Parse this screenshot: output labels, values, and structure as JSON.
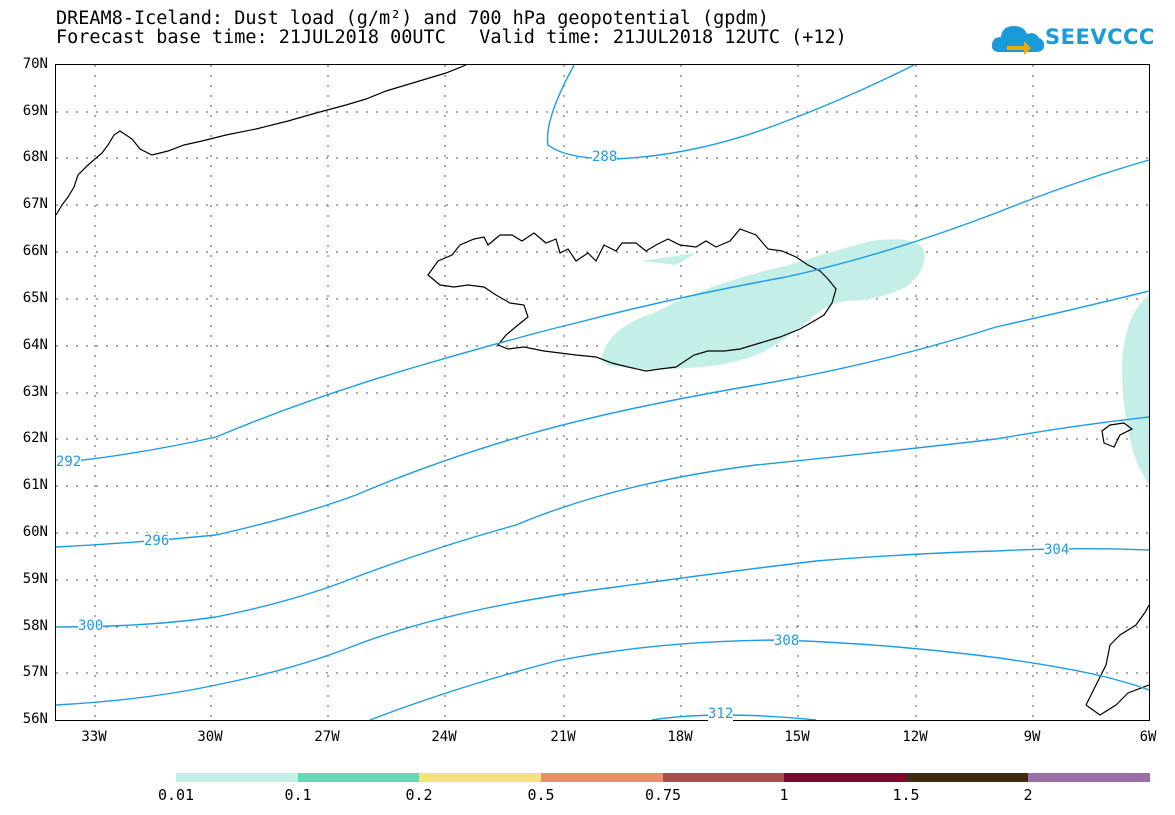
{
  "header": {
    "title_line1": "DREAM8-Iceland: Dust load (g/m²) and 700 hPa geopotential (gpdm)",
    "title_line2": "Forecast base time: 21JUL2018 00UTC   Valid time: 21JUL2018 12UTC (+12)",
    "logo_text": "SEEVCCC"
  },
  "axes": {
    "lat_labels": [
      "70N",
      "69N",
      "68N",
      "67N",
      "66N",
      "65N",
      "64N",
      "63N",
      "62N",
      "61N",
      "60N",
      "59N",
      "58N",
      "57N",
      "56N"
    ],
    "lon_labels": [
      "33W",
      "30W",
      "27W",
      "24W",
      "21W",
      "18W",
      "15W",
      "12W",
      "9W",
      "6W"
    ]
  },
  "contours": {
    "line_color": "#1c9ce6",
    "labels": [
      "288",
      "292",
      "296",
      "300",
      "304",
      "308",
      "312"
    ]
  },
  "colorbar": {
    "colors": [
      "#c4efe8",
      "#5fdcb5",
      "#f5e27a",
      "#e88f6e",
      "#a55050",
      "#7d0a2e",
      "#3f2a14",
      "#9a6fa5"
    ],
    "labels": [
      "0.01",
      "0.1",
      "0.2",
      "0.5",
      "0.75",
      "1",
      "1.5",
      "2"
    ]
  },
  "dust_color": "#c4efe8",
  "coast_color": "#000000"
}
